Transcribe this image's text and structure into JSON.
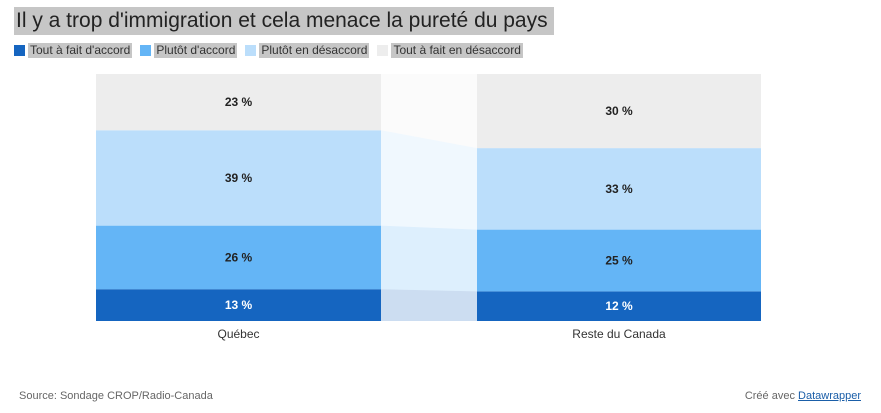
{
  "title": "Il y a trop d'immigration et cela menace la pureté du pays",
  "legend": [
    {
      "label": "Tout à fait d'accord",
      "color": "#1565c0"
    },
    {
      "label": "Plutôt d'accord",
      "color": "#64b5f6"
    },
    {
      "label": "Plutôt en désaccord",
      "color": "#bbdefb"
    },
    {
      "label": "Tout à fait en désaccord",
      "color": "#ededed"
    }
  ],
  "footer": {
    "source": "Source: Sondage CROP/Radio-Canada",
    "credit_prefix": "Créé avec",
    "credit_link": "Datawrapper"
  },
  "chart_data": {
    "type": "bar",
    "stacked": true,
    "categories": [
      "Québec",
      "Reste du Canada"
    ],
    "series": [
      {
        "name": "Tout à fait d'accord",
        "values": [
          13,
          12
        ],
        "labels": [
          "13 %",
          "12 %"
        ],
        "color": "#1565c0",
        "label_color": "#ffffff"
      },
      {
        "name": "Plutôt d'accord",
        "values": [
          26,
          25
        ],
        "labels": [
          "26 %",
          "25 %"
        ],
        "color": "#64b5f6",
        "label_color": "#222222"
      },
      {
        "name": "Plutôt en désaccord",
        "values": [
          39,
          33
        ],
        "labels": [
          "39 %",
          "33 %"
        ],
        "color": "#bbdefb",
        "label_color": "#222222"
      },
      {
        "name": "Tout à fait en désaccord",
        "values": [
          23,
          30
        ],
        "labels": [
          "23 %",
          "30 %"
        ],
        "color": "#ededed",
        "label_color": "#222222"
      }
    ],
    "unit": "%"
  }
}
